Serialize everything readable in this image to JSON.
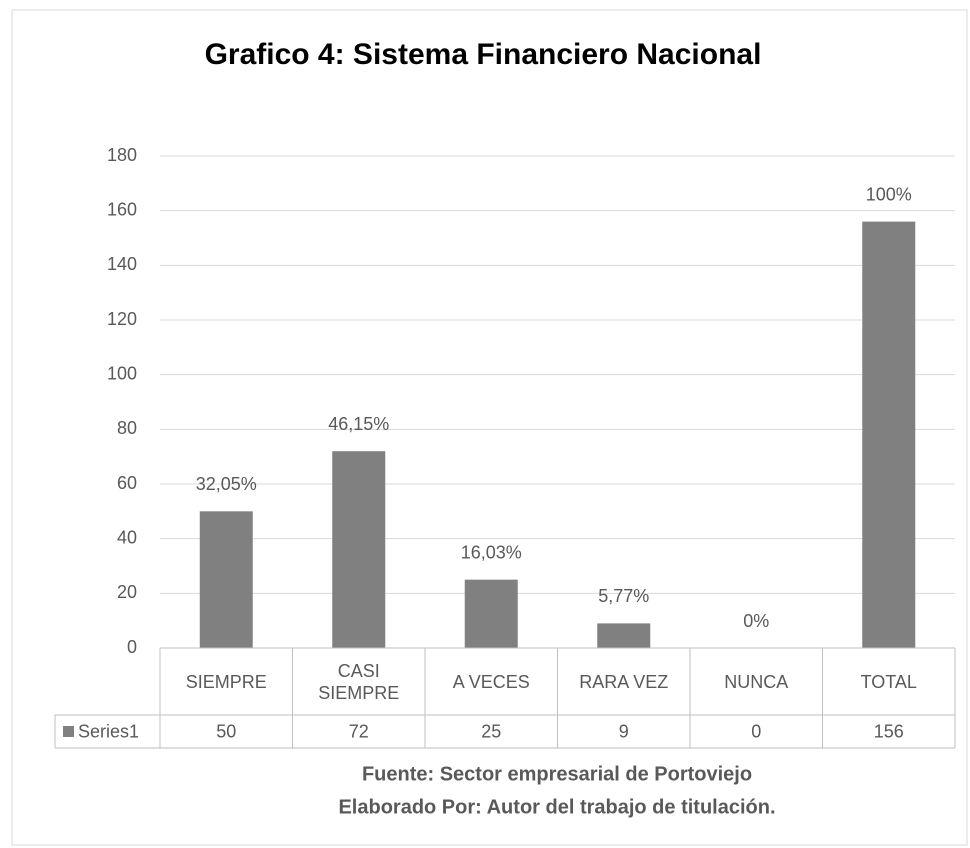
{
  "chart_data": {
    "type": "bar",
    "title": "Grafico 4: Sistema Financiero Nacional",
    "categories": [
      "SIEMPRE",
      "CASI SIEMPRE",
      "A VECES",
      "RARA VEZ",
      "NUNCA",
      "TOTAL"
    ],
    "series": [
      {
        "name": "Series1",
        "color": "#808080",
        "values": [
          50,
          72,
          25,
          9,
          0,
          156
        ]
      }
    ],
    "data_labels": [
      "32,05%",
      "46,15%",
      "16,03%",
      "5,77%",
      "0%",
      "100%"
    ],
    "ylim": [
      0,
      180
    ],
    "yticks": [
      0,
      20,
      40,
      60,
      80,
      100,
      120,
      140,
      160,
      180
    ],
    "grid": true,
    "data_table": true,
    "notes": [
      "Fuente: Sector empresarial de Portoviejo",
      "Elaborado Por: Autor del trabajo de titulación."
    ]
  }
}
